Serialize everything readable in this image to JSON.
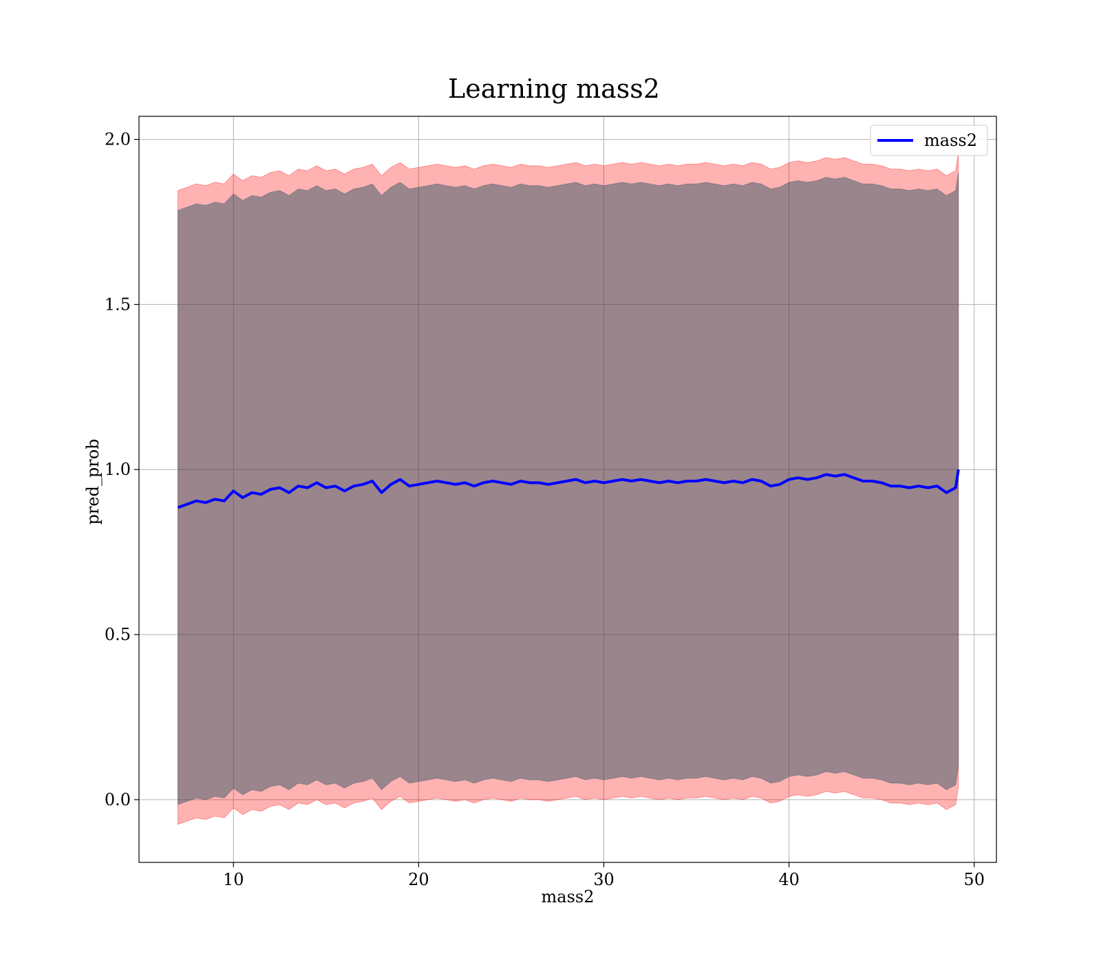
{
  "chart_data": {
    "type": "line",
    "title": "Learning mass2",
    "xlabel": "mass2",
    "ylabel": "pred_prob",
    "xlim": [
      4.9,
      51.2
    ],
    "ylim": [
      -0.19,
      2.07
    ],
    "xticks": [
      10,
      20,
      30,
      40,
      50
    ],
    "xtick_labels": [
      "10",
      "20",
      "30",
      "40",
      "50"
    ],
    "yticks": [
      0.0,
      0.5,
      1.0,
      1.5,
      2.0
    ],
    "ytick_labels": [
      "0.0",
      "0.5",
      "1.0",
      "1.5",
      "2.0"
    ],
    "grid": true,
    "legend": {
      "position": "top-right",
      "entries": [
        "mass2"
      ]
    },
    "x": [
      7.0,
      7.5,
      8.0,
      8.5,
      9.0,
      9.5,
      10.0,
      10.5,
      11.0,
      11.5,
      12.0,
      12.5,
      13.0,
      13.5,
      14.0,
      14.5,
      15.0,
      15.5,
      16.0,
      16.5,
      17.0,
      17.5,
      18.0,
      18.5,
      19.0,
      19.5,
      20.0,
      20.5,
      21.0,
      21.5,
      22.0,
      22.5,
      23.0,
      23.5,
      24.0,
      24.5,
      25.0,
      25.5,
      26.0,
      26.5,
      27.0,
      27.5,
      28.0,
      28.5,
      29.0,
      29.5,
      30.0,
      30.5,
      31.0,
      31.5,
      32.0,
      32.5,
      33.0,
      33.5,
      34.0,
      34.5,
      35.0,
      35.5,
      36.0,
      36.5,
      37.0,
      37.5,
      38.0,
      38.5,
      39.0,
      39.5,
      40.0,
      40.5,
      41.0,
      41.5,
      42.0,
      42.5,
      43.0,
      43.5,
      44.0,
      44.5,
      45.0,
      45.5,
      46.0,
      46.5,
      47.0,
      47.5,
      48.0,
      48.5,
      49.0,
      49.15
    ],
    "series": [
      {
        "name": "mass2",
        "color": "#0000ff",
        "values": [
          0.885,
          0.895,
          0.905,
          0.9,
          0.91,
          0.905,
          0.935,
          0.915,
          0.93,
          0.925,
          0.94,
          0.945,
          0.93,
          0.95,
          0.945,
          0.96,
          0.945,
          0.95,
          0.935,
          0.95,
          0.955,
          0.965,
          0.93,
          0.955,
          0.97,
          0.95,
          0.955,
          0.96,
          0.965,
          0.96,
          0.955,
          0.96,
          0.95,
          0.96,
          0.965,
          0.96,
          0.955,
          0.965,
          0.96,
          0.96,
          0.955,
          0.96,
          0.965,
          0.97,
          0.96,
          0.965,
          0.96,
          0.965,
          0.97,
          0.965,
          0.97,
          0.965,
          0.96,
          0.965,
          0.96,
          0.965,
          0.965,
          0.97,
          0.965,
          0.96,
          0.965,
          0.96,
          0.97,
          0.965,
          0.95,
          0.955,
          0.97,
          0.975,
          0.97,
          0.975,
          0.985,
          0.98,
          0.985,
          0.975,
          0.965,
          0.965,
          0.96,
          0.95,
          0.95,
          0.945,
          0.95,
          0.945,
          0.95,
          0.93,
          0.945,
          1.0
        ]
      }
    ],
    "bands": [
      {
        "kind": "outer",
        "color": "#ff0000",
        "opacity": 0.3,
        "width": 0.96
      },
      {
        "kind": "inner",
        "color": "#1f4e5f",
        "opacity": 0.45,
        "width": 0.9
      }
    ]
  }
}
